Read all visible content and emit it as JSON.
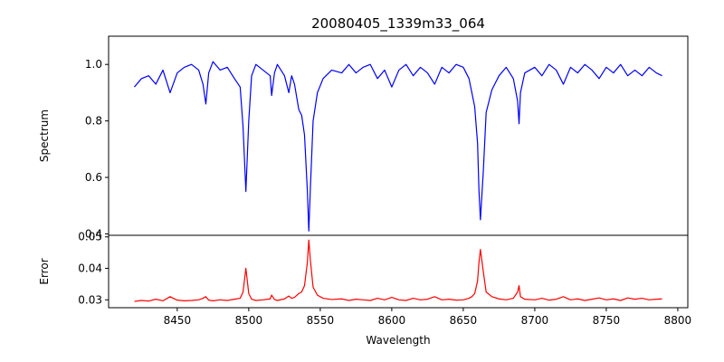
{
  "chart_data": [
    {
      "type": "line",
      "panel": "top",
      "title": "20080405_1339m33_064",
      "xlabel": "",
      "ylabel": "Spectrum",
      "xlim": [
        8402,
        8807
      ],
      "ylim": [
        0.395,
        1.1
      ],
      "yticks": [
        0.4,
        0.6,
        0.8,
        1.0
      ],
      "ytick_labels": [
        "0.4",
        "0.6",
        "0.8",
        "1.0"
      ],
      "grid": false,
      "series": [
        {
          "color": "#0000ff",
          "x": [
            8420,
            8425,
            8430,
            8435,
            8440,
            8445,
            8450,
            8455,
            8460,
            8465,
            8468,
            8470,
            8472,
            8475,
            8480,
            8485,
            8490,
            8494,
            8496,
            8498,
            8500,
            8502,
            8505,
            8510,
            8515,
            8516,
            8518,
            8520,
            8525,
            8528,
            8530,
            8532,
            8535,
            8537,
            8539,
            8541,
            8542,
            8543,
            8545,
            8548,
            8552,
            8558,
            8565,
            8570,
            8575,
            8580,
            8585,
            8590,
            8595,
            8600,
            8605,
            8610,
            8615,
            8620,
            8625,
            8630,
            8635,
            8640,
            8645,
            8650,
            8654,
            8656,
            8658,
            8660,
            8661,
            8662,
            8664,
            8666,
            8670,
            8675,
            8680,
            8685,
            8688,
            8689,
            8690,
            8693,
            8700,
            8705,
            8710,
            8715,
            8720,
            8725,
            8730,
            8735,
            8740,
            8745,
            8750,
            8755,
            8760,
            8765,
            8770,
            8775,
            8780,
            8785,
            8789
          ],
          "y": [
            0.92,
            0.95,
            0.96,
            0.93,
            0.98,
            0.9,
            0.97,
            0.99,
            1.0,
            0.98,
            0.93,
            0.86,
            0.97,
            1.01,
            0.98,
            0.99,
            0.95,
            0.92,
            0.78,
            0.55,
            0.8,
            0.96,
            1.0,
            0.98,
            0.96,
            0.89,
            0.97,
            1.0,
            0.96,
            0.9,
            0.96,
            0.93,
            0.84,
            0.82,
            0.75,
            0.55,
            0.41,
            0.55,
            0.8,
            0.9,
            0.95,
            0.98,
            0.97,
            1.0,
            0.97,
            0.99,
            1.0,
            0.95,
            0.98,
            0.92,
            0.98,
            1.0,
            0.96,
            0.99,
            0.97,
            0.93,
            0.99,
            0.97,
            1.0,
            0.99,
            0.95,
            0.9,
            0.85,
            0.72,
            0.55,
            0.45,
            0.62,
            0.83,
            0.91,
            0.96,
            0.99,
            0.95,
            0.87,
            0.79,
            0.9,
            0.97,
            0.99,
            0.96,
            1.0,
            0.98,
            0.93,
            0.99,
            0.97,
            1.0,
            0.98,
            0.95,
            0.99,
            0.97,
            1.0,
            0.96,
            0.98,
            0.96,
            0.99,
            0.97,
            0.96
          ]
        }
      ]
    },
    {
      "type": "line",
      "panel": "bottom",
      "title": "",
      "xlabel": "Wavelength",
      "ylabel": "Error",
      "xlim": [
        8402,
        8807
      ],
      "ylim": [
        0.0275,
        0.0505
      ],
      "xticks": [
        8450,
        8500,
        8550,
        8600,
        8650,
        8700,
        8750,
        8800
      ],
      "xtick_labels": [
        "8450",
        "8500",
        "8550",
        "8600",
        "8650",
        "8700",
        "8750",
        "8800"
      ],
      "yticks": [
        0.03,
        0.04,
        0.05
      ],
      "ytick_labels": [
        "0.03",
        "0.04",
        "0.05"
      ],
      "grid": false,
      "series": [
        {
          "color": "#ff0000",
          "x": [
            8420,
            8425,
            8430,
            8435,
            8440,
            8445,
            8450,
            8455,
            8460,
            8465,
            8468,
            8470,
            8472,
            8475,
            8480,
            8485,
            8490,
            8494,
            8496,
            8498,
            8500,
            8502,
            8505,
            8510,
            8515,
            8516,
            8518,
            8520,
            8525,
            8528,
            8530,
            8532,
            8535,
            8537,
            8539,
            8541,
            8542,
            8543,
            8545,
            8548,
            8552,
            8558,
            8565,
            8570,
            8575,
            8580,
            8585,
            8590,
            8595,
            8600,
            8605,
            8610,
            8615,
            8620,
            8625,
            8630,
            8635,
            8640,
            8645,
            8650,
            8654,
            8656,
            8658,
            8660,
            8661,
            8662,
            8664,
            8666,
            8670,
            8675,
            8680,
            8685,
            8688,
            8689,
            8690,
            8693,
            8700,
            8705,
            8710,
            8715,
            8720,
            8725,
            8730,
            8735,
            8740,
            8745,
            8750,
            8755,
            8760,
            8765,
            8770,
            8775,
            8780,
            8785,
            8789
          ],
          "y": [
            0.0295,
            0.0298,
            0.0296,
            0.0302,
            0.0297,
            0.031,
            0.0299,
            0.0297,
            0.0298,
            0.03,
            0.0305,
            0.031,
            0.0299,
            0.0297,
            0.03,
            0.0298,
            0.0302,
            0.0305,
            0.0325,
            0.04,
            0.032,
            0.0302,
            0.0298,
            0.03,
            0.0303,
            0.0315,
            0.0301,
            0.0298,
            0.0303,
            0.0312,
            0.0305,
            0.0308,
            0.032,
            0.0325,
            0.0345,
            0.042,
            0.049,
            0.043,
            0.034,
            0.0315,
            0.0305,
            0.0301,
            0.0303,
            0.0298,
            0.0302,
            0.03,
            0.0298,
            0.0305,
            0.03,
            0.0308,
            0.03,
            0.0298,
            0.0305,
            0.03,
            0.0302,
            0.031,
            0.03,
            0.0302,
            0.0299,
            0.03,
            0.0305,
            0.031,
            0.032,
            0.036,
            0.042,
            0.046,
            0.039,
            0.0325,
            0.031,
            0.0303,
            0.03,
            0.0305,
            0.0325,
            0.0345,
            0.031,
            0.0302,
            0.03,
            0.0305,
            0.0299,
            0.0302,
            0.031,
            0.03,
            0.0303,
            0.0298,
            0.0302,
            0.0306,
            0.03,
            0.0303,
            0.0298,
            0.0306,
            0.0302,
            0.0305,
            0.03,
            0.0302,
            0.0303
          ]
        }
      ]
    }
  ]
}
